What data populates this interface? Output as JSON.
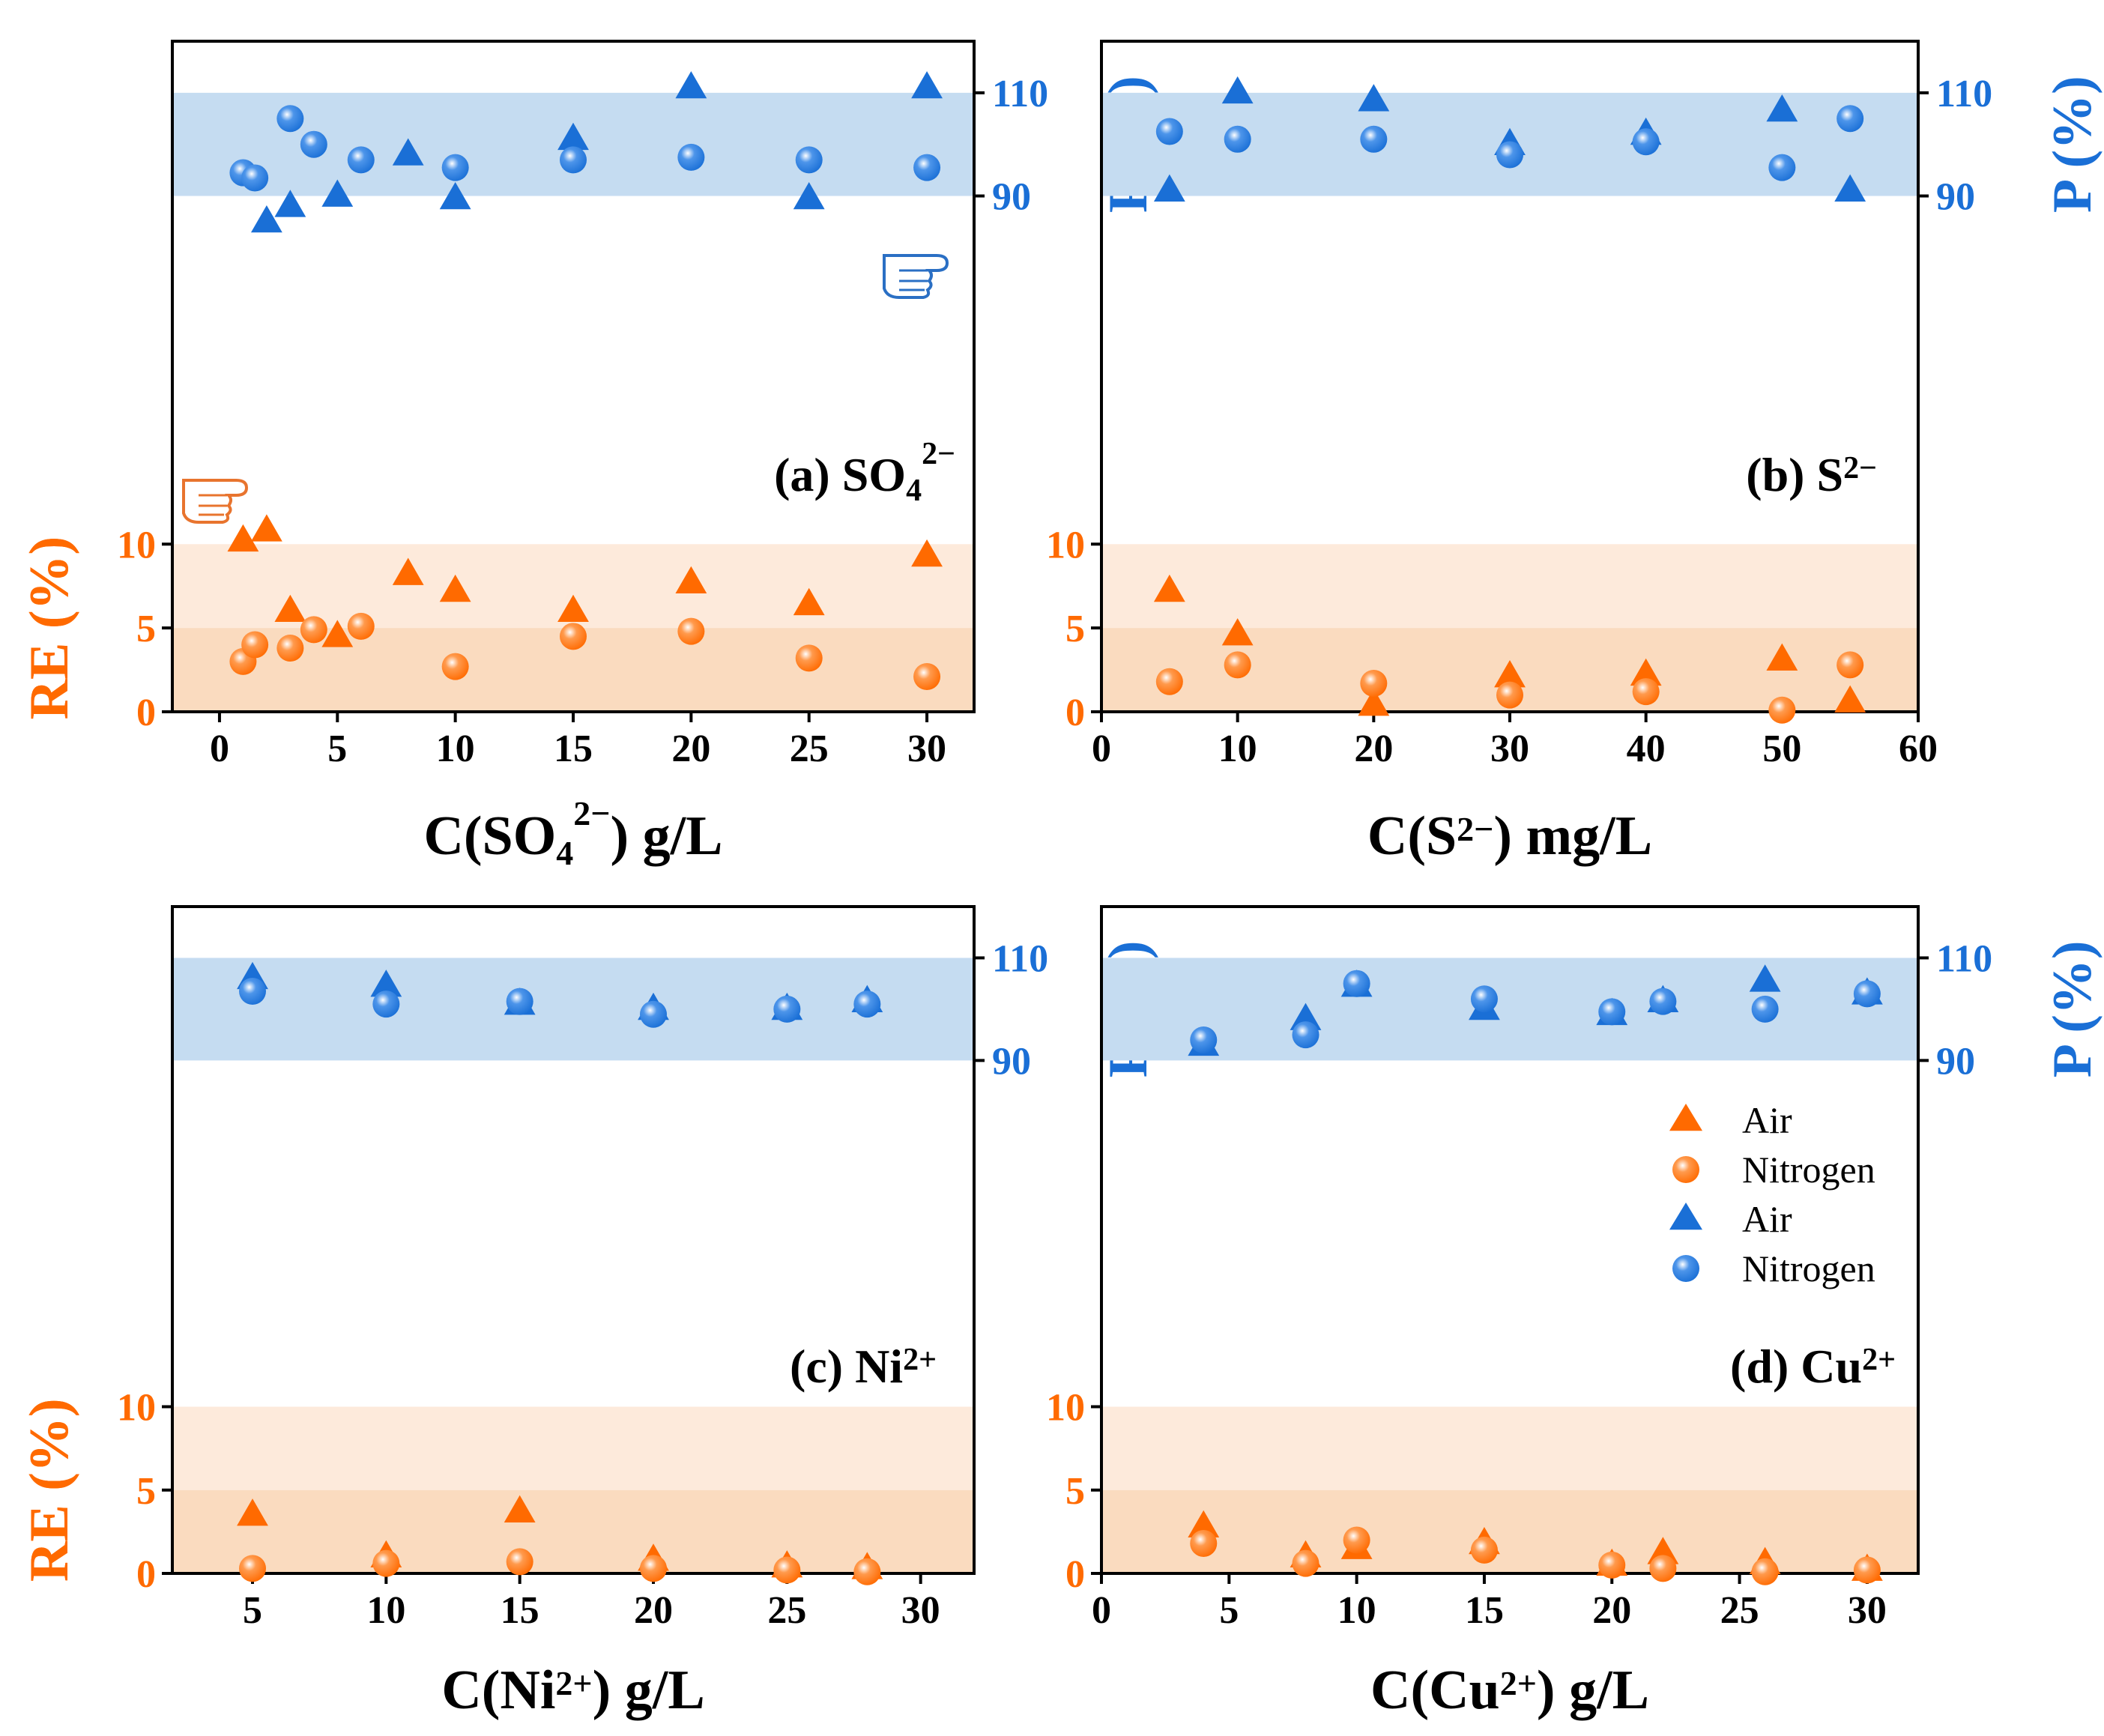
{
  "colors": {
    "orange": "#ff6a00",
    "blue": "#1a6fd6",
    "blue_band": "#c5dcf1",
    "orange_band_light": "#fdeadb",
    "orange_band_dark": "#fadbbf",
    "hand_orange": "#e8742e",
    "hand_blue": "#2a6fc4"
  },
  "left_axis_label": "RE (%)",
  "right_axis_label": "P (%)",
  "legend": {
    "entries": [
      {
        "label": "Air",
        "marker": "triangle",
        "color": "orange"
      },
      {
        "label": "Nitrogen",
        "marker": "circle",
        "color": "orange"
      },
      {
        "label": "Air",
        "marker": "triangle",
        "color": "blue"
      },
      {
        "label": "Nitrogen",
        "marker": "circle",
        "color": "blue"
      }
    ]
  },
  "chart_data": [
    {
      "type": "scatter",
      "panel": "a",
      "label_main": "(a) SO",
      "label_sub": "4",
      "label_sup": "2−",
      "xlabel_pre": "C(SO",
      "xlabel_sub": "4",
      "xlabel_sup": "2−",
      "xlabel_post": ") g/L",
      "xlim": [
        -2,
        32
      ],
      "xticks": [
        0,
        5,
        10,
        15,
        20,
        25,
        30
      ],
      "left_ylim": [
        0,
        40
      ],
      "left_yticks": [
        0,
        5,
        10
      ],
      "left_bands": [
        [
          0,
          5
        ],
        [
          5,
          10
        ]
      ],
      "right_ylim": [
        -10,
        120
      ],
      "right_yticks": [
        90,
        110
      ],
      "right_band": [
        90,
        110
      ],
      "hands": true,
      "series": [
        {
          "name": "Air",
          "axis": "RE",
          "marker": "triangle",
          "x": [
            1,
            2,
            3,
            5,
            8,
            10,
            15,
            20,
            25,
            30
          ],
          "y": [
            10.2,
            10.8,
            6.0,
            4.5,
            8.2,
            7.2,
            6.0,
            7.7,
            6.4,
            9.3
          ]
        },
        {
          "name": "Nitrogen",
          "axis": "RE",
          "marker": "circle",
          "x": [
            1,
            1.5,
            3,
            4,
            6,
            10,
            15,
            20,
            25,
            30
          ],
          "y": [
            3.0,
            4.0,
            3.8,
            4.9,
            5.1,
            2.7,
            4.5,
            4.8,
            3.2,
            2.1
          ]
        },
        {
          "name": "Air",
          "axis": "P",
          "marker": "triangle",
          "x": [
            2,
            3,
            5,
            8,
            10,
            15,
            20,
            25,
            30
          ],
          "y": [
            85,
            88,
            90,
            98,
            89.5,
            101,
            111,
            89.5,
            111
          ]
        },
        {
          "name": "Nitrogen",
          "axis": "P",
          "marker": "circle",
          "x": [
            1,
            1.5,
            3,
            4,
            6,
            10,
            15,
            20,
            25,
            30
          ],
          "y": [
            94.5,
            93.5,
            105,
            100,
            97,
            95.5,
            97,
            97.5,
            97,
            95.5
          ]
        }
      ]
    },
    {
      "type": "scatter",
      "panel": "b",
      "label_main": "(b) S",
      "label_sub": "",
      "label_sup": "2−",
      "xlabel_pre": "C(S",
      "xlabel_sub": "",
      "xlabel_sup": "2−",
      "xlabel_post": ") mg/L",
      "xlim": [
        0,
        60
      ],
      "xticks": [
        0,
        10,
        20,
        30,
        40,
        50,
        60
      ],
      "left_ylim": [
        0,
        40
      ],
      "left_yticks": [
        0,
        5,
        10
      ],
      "left_bands": [
        [
          0,
          5
        ],
        [
          5,
          10
        ]
      ],
      "right_ylim": [
        -10,
        120
      ],
      "right_yticks": [
        90,
        110
      ],
      "right_band": [
        90,
        110
      ],
      "hands": false,
      "series": [
        {
          "name": "Air",
          "axis": "RE",
          "marker": "triangle",
          "x": [
            5,
            10,
            20,
            30,
            40,
            50,
            55
          ],
          "y": [
            7.2,
            4.6,
            0.4,
            2.1,
            2.2,
            3.1,
            0.6
          ]
        },
        {
          "name": "Nitrogen",
          "axis": "RE",
          "marker": "circle",
          "x": [
            5,
            10,
            20,
            30,
            40,
            50,
            55
          ],
          "y": [
            1.8,
            2.8,
            1.7,
            1.0,
            1.2,
            0.1,
            2.8
          ]
        },
        {
          "name": "Air",
          "axis": "P",
          "marker": "triangle",
          "x": [
            5,
            10,
            20,
            30,
            40,
            50,
            55
          ],
          "y": [
            91,
            110,
            108.5,
            100,
            102,
            106.5,
            91
          ]
        },
        {
          "name": "Nitrogen",
          "axis": "P",
          "marker": "circle",
          "x": [
            5,
            10,
            20,
            30,
            40,
            50,
            55
          ],
          "y": [
            102.5,
            101,
            101,
            98,
            100.5,
            95.5,
            105
          ]
        }
      ]
    },
    {
      "type": "scatter",
      "panel": "c",
      "label_main": "(c) Ni",
      "label_sub": "",
      "label_sup": "2+",
      "xlabel_pre": "C(Ni",
      "xlabel_sub": "",
      "xlabel_sup": "2+",
      "xlabel_post": ") g/L",
      "xlim": [
        2,
        32
      ],
      "xticks": [
        5,
        10,
        15,
        20,
        25,
        30
      ],
      "left_ylim": [
        0,
        40
      ],
      "left_yticks": [
        0,
        5,
        10
      ],
      "left_bands": [
        [
          0,
          5
        ],
        [
          5,
          10
        ]
      ],
      "right_ylim": [
        -10,
        120
      ],
      "right_yticks": [
        90,
        110
      ],
      "right_band": [
        90,
        110
      ],
      "hands": false,
      "series": [
        {
          "name": "Air",
          "axis": "RE",
          "marker": "triangle",
          "x": [
            5,
            10,
            15,
            20,
            25,
            28
          ],
          "y": [
            3.5,
            1.0,
            3.7,
            0.8,
            0.4,
            0.3
          ]
        },
        {
          "name": "Nitrogen",
          "axis": "RE",
          "marker": "circle",
          "x": [
            5,
            10,
            15,
            20,
            25,
            28
          ],
          "y": [
            0.3,
            0.6,
            0.7,
            0.3,
            0.2,
            0.1
          ]
        },
        {
          "name": "Air",
          "axis": "P",
          "marker": "triangle",
          "x": [
            5,
            10,
            15,
            20,
            25,
            28
          ],
          "y": [
            106,
            104.5,
            101,
            100,
            100,
            101.5
          ]
        },
        {
          "name": "Nitrogen",
          "axis": "P",
          "marker": "circle",
          "x": [
            5,
            10,
            15,
            20,
            25,
            28
          ],
          "y": [
            103.5,
            101,
            101.5,
            99,
            100,
            101
          ]
        }
      ]
    },
    {
      "type": "scatter",
      "panel": "d",
      "label_main": "(d) Cu",
      "label_sub": "",
      "label_sup": "2+",
      "xlabel_pre": "C(Cu",
      "xlabel_sub": "",
      "xlabel_sup": "2+",
      "xlabel_post": ") g/L",
      "xlim": [
        0,
        32
      ],
      "xticks": [
        0,
        5,
        10,
        15,
        20,
        25,
        30
      ],
      "left_ylim": [
        0,
        40
      ],
      "left_yticks": [
        0,
        5,
        10
      ],
      "left_bands": [
        [
          0,
          5
        ],
        [
          5,
          10
        ]
      ],
      "right_ylim": [
        -10,
        120
      ],
      "right_yticks": [
        90,
        110
      ],
      "right_band": [
        90,
        110
      ],
      "hands": false,
      "series": [
        {
          "name": "Air",
          "axis": "RE",
          "marker": "triangle",
          "x": [
            4,
            8,
            10,
            15,
            20,
            22,
            26,
            30
          ],
          "y": [
            2.8,
            1.0,
            1.5,
            1.8,
            0.5,
            1.2,
            0.6,
            0.2
          ]
        },
        {
          "name": "Nitrogen",
          "axis": "RE",
          "marker": "circle",
          "x": [
            4,
            8,
            10,
            15,
            20,
            22,
            26,
            30
          ],
          "y": [
            1.8,
            0.6,
            2.0,
            1.4,
            0.5,
            0.3,
            0.1,
            0.2
          ]
        },
        {
          "name": "Air",
          "axis": "P",
          "marker": "triangle",
          "x": [
            4,
            8,
            10,
            15,
            20,
            22,
            26,
            30
          ],
          "y": [
            93,
            98,
            104.5,
            100,
            99,
            101.5,
            105.5,
            103
          ]
        },
        {
          "name": "Nitrogen",
          "axis": "P",
          "marker": "circle",
          "x": [
            4,
            8,
            10,
            15,
            20,
            22,
            26,
            30
          ],
          "y": [
            94,
            95,
            105,
            102,
            99.5,
            101.5,
            100,
            103
          ]
        }
      ]
    }
  ]
}
